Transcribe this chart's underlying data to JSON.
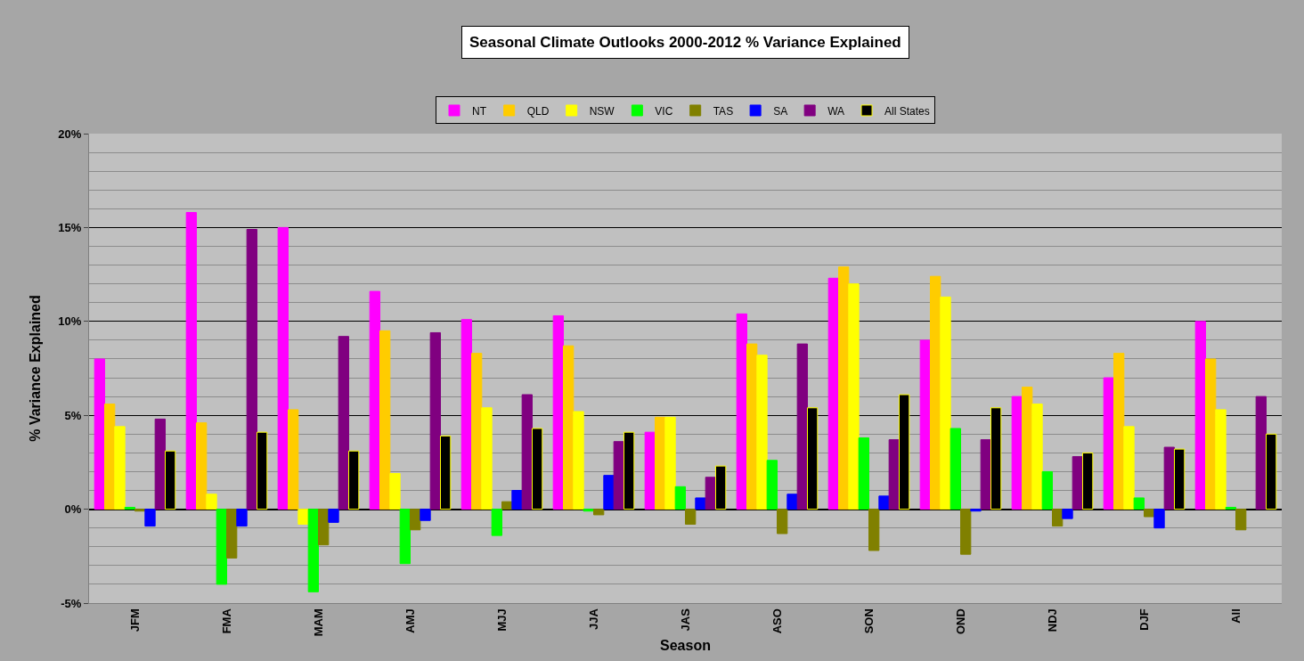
{
  "chart_data": {
    "type": "bar",
    "title": "Seasonal Climate Outlooks 2000-2012 % Variance Explained",
    "xlabel": "Season",
    "ylabel": "% Variance Explained",
    "categories": [
      "JFM",
      "FMA",
      "MAM",
      "AMJ",
      "MJJ",
      "JJA",
      "JAS",
      "ASO",
      "SON",
      "OND",
      "NDJ",
      "DJF",
      "All"
    ],
    "series": [
      {
        "name": "NT",
        "color": "#ff00ff",
        "values": [
          8.0,
          15.8,
          15.0,
          11.6,
          10.1,
          10.3,
          4.1,
          10.4,
          12.3,
          9.0,
          6.0,
          7.0,
          10.0
        ]
      },
      {
        "name": "QLD",
        "color": "#ffcc00",
        "values": [
          5.6,
          4.6,
          5.3,
          9.5,
          8.3,
          8.7,
          4.9,
          8.8,
          12.9,
          12.4,
          6.5,
          8.3,
          8.0
        ]
      },
      {
        "name": "NSW",
        "color": "#ffff00",
        "values": [
          4.4,
          0.8,
          -0.8,
          1.9,
          5.4,
          5.2,
          4.9,
          8.2,
          12.0,
          11.3,
          5.6,
          4.4,
          5.3
        ]
      },
      {
        "name": "VIC",
        "color": "#00ff00",
        "values": [
          0.1,
          -4.0,
          -4.4,
          -2.9,
          -1.4,
          -0.1,
          1.2,
          2.6,
          3.8,
          4.3,
          2.0,
          0.6,
          0.1
        ]
      },
      {
        "name": "TAS",
        "color": "#808000",
        "values": [
          -0.1,
          -2.6,
          -1.9,
          -1.1,
          0.4,
          -0.3,
          -0.8,
          -1.3,
          -2.2,
          -2.4,
          -0.9,
          -0.4,
          -1.1
        ]
      },
      {
        "name": "SA",
        "color": "#0000ff",
        "values": [
          -0.9,
          -0.9,
          -0.7,
          -0.6,
          1.0,
          1.8,
          0.6,
          0.8,
          0.7,
          -0.1,
          -0.5,
          -1.0,
          null
        ]
      },
      {
        "name": "WA",
        "color": "#800080",
        "values": [
          4.8,
          14.9,
          9.2,
          9.4,
          6.1,
          3.6,
          1.7,
          8.8,
          3.7,
          3.7,
          2.8,
          3.3,
          6.0
        ]
      },
      {
        "name": "All States",
        "color": "#000000",
        "values": [
          3.1,
          4.1,
          3.1,
          3.9,
          4.3,
          4.1,
          2.3,
          5.4,
          6.1,
          5.4,
          3.0,
          3.2,
          4.0
        ]
      }
    ],
    "ylim": [
      -5,
      20
    ],
    "yticks": [
      {
        "value": -5,
        "label": "-5%"
      },
      {
        "value": 0,
        "label": "0%"
      },
      {
        "value": 5,
        "label": "5%"
      },
      {
        "value": 10,
        "label": "10%"
      },
      {
        "value": 15,
        "label": "15%"
      },
      {
        "value": 20,
        "label": "20%"
      }
    ],
    "grid": "y",
    "legend": "top"
  }
}
